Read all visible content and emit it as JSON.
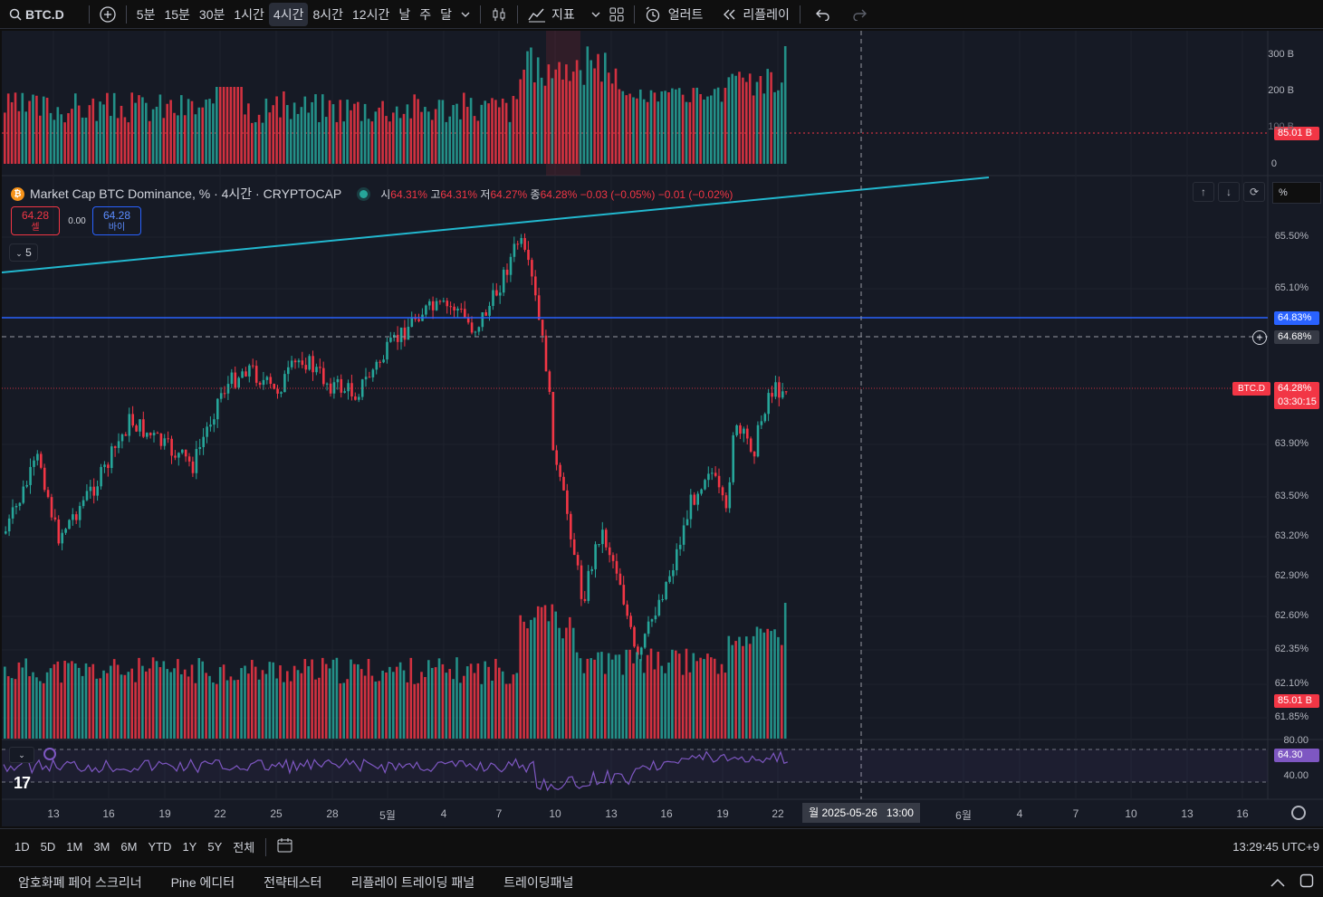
{
  "toolbar": {
    "symbol": "BTC.D",
    "intervals": [
      "5분",
      "15분",
      "30분",
      "1시간",
      "4시간",
      "8시간",
      "12시간",
      "날",
      "주",
      "달"
    ],
    "active_interval": "4시간",
    "indicators_label": "지표",
    "alert_label": "얼러트",
    "replay_label": "리플레이"
  },
  "legend": {
    "title": "Market Cap BTC Dominance, % · 4시간 · CRYPTOCAP",
    "o_label": "시",
    "o_value": "64.31%",
    "h_label": "고",
    "h_value": "64.31%",
    "l_label": "저",
    "l_value": "64.27%",
    "c_label": "종",
    "c_value": "64.28%",
    "change": "−0.03 (−0.05%)",
    "change2": "−0.01 (−0.02%)",
    "sell_price": "64.28",
    "sell_label": "셀",
    "spread": "0.00",
    "buy_price": "64.28",
    "buy_label": "바이",
    "collapse_count": "5",
    "pct_label": "%"
  },
  "price_axis": [
    "65.50%",
    "65.10%",
    "63.90%",
    "63.50%",
    "63.20%",
    "62.90%",
    "62.60%",
    "62.35%",
    "62.10%",
    "61.85%"
  ],
  "price_levels": {
    "blue_line": "64.83%",
    "dashed_line": "64.68%",
    "last_symbol": "BTC.D",
    "last_price": "64.28%",
    "countdown": "03:30:15"
  },
  "volume_axis": [
    "300 B",
    "200 B",
    "100 B",
    "0"
  ],
  "volume_last": "85.01 B",
  "volume_bottom_last": "85.01 B",
  "volume_bottom_axis_cut": "80.00",
  "rsi": {
    "axis_low": "40.00",
    "value": "64.30"
  },
  "time_axis": [
    "13",
    "16",
    "19",
    "22",
    "25",
    "28",
    "5월",
    "4",
    "7",
    "10",
    "13",
    "16",
    "19",
    "22",
    "6월",
    "4",
    "7",
    "10",
    "13",
    "16"
  ],
  "crosshair_time": "월 2025-05-26   13:00",
  "ranges": [
    "1D",
    "5D",
    "1M",
    "3M",
    "6M",
    "YTD",
    "1Y",
    "5Y",
    "전체"
  ],
  "clock": "13:29:45 UTC+9",
  "bottom_tabs": [
    "암호화폐 페어 스크리너",
    "Pine 에디터",
    "전략테스터",
    "리플레이 트레이딩 패널",
    "트레이딩패널"
  ],
  "colors": {
    "up": "#26a69a",
    "down": "#f23645",
    "trend": "#22b8cf",
    "level": "#2962ff",
    "rsi": "#7e57c2"
  }
}
